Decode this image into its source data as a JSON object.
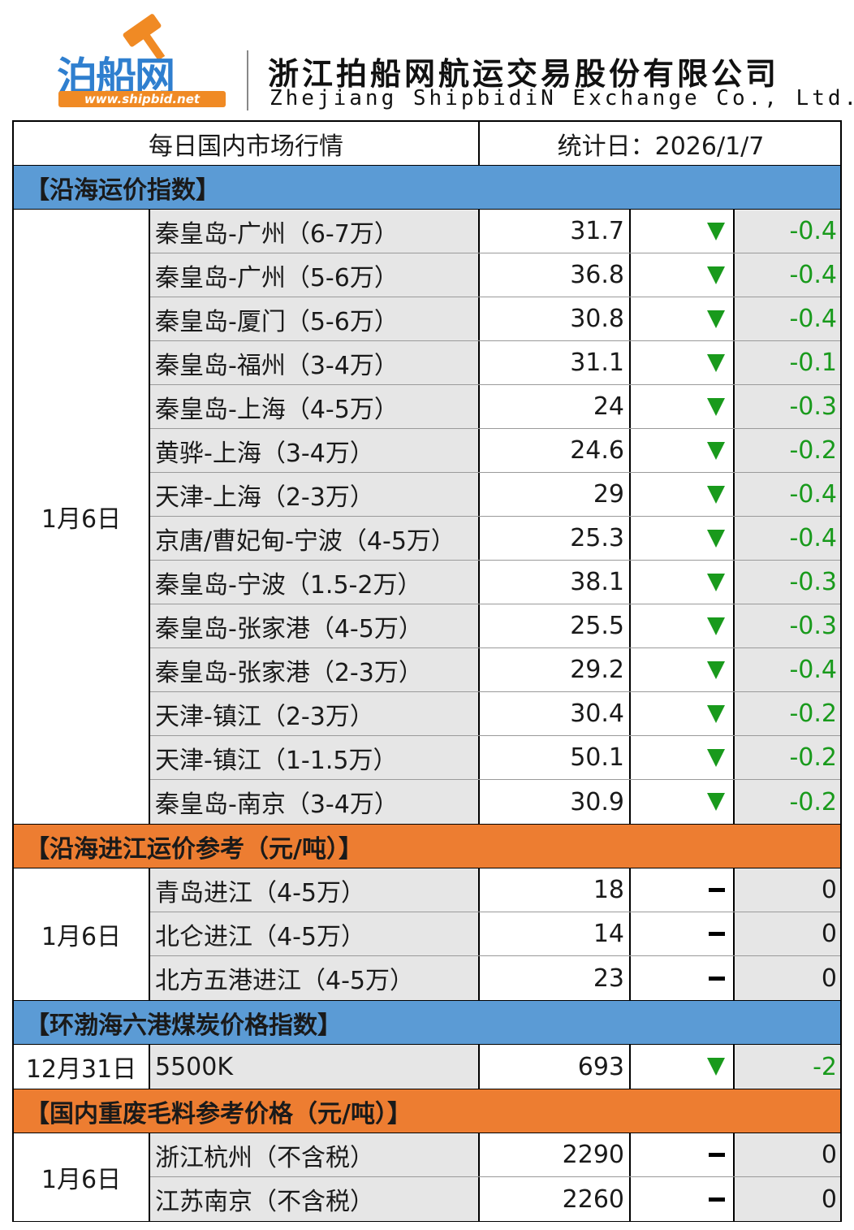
{
  "header": {
    "logo_text": "泊船网",
    "logo_url": "www.shipbid.net",
    "company_cn": "浙江拍船网航运交易股份有限公司",
    "company_en": "Zhejiang ShipbidiN Exchange Co., Ltd."
  },
  "title": {
    "left": "每日国内市场行情",
    "right": "统计日：2026/1/7"
  },
  "sections": [
    {
      "title": "【沿海运价指数】",
      "date": "1月6日",
      "rows": [
        {
          "name": "秦皇岛-广州（6-7万）",
          "value": "31.7",
          "trend": "down",
          "change": "-0.4"
        },
        {
          "name": "秦皇岛-广州（5-6万）",
          "value": "36.8",
          "trend": "down",
          "change": "-0.4"
        },
        {
          "name": "秦皇岛-厦门（5-6万）",
          "value": "30.8",
          "trend": "down",
          "change": "-0.4"
        },
        {
          "name": "秦皇岛-福州（3-4万）",
          "value": "31.1",
          "trend": "down",
          "change": "-0.1"
        },
        {
          "name": "秦皇岛-上海（4-5万）",
          "value": "24",
          "trend": "down",
          "change": "-0.3"
        },
        {
          "name": "黄骅-上海（3-4万）",
          "value": "24.6",
          "trend": "down",
          "change": "-0.2"
        },
        {
          "name": "天津-上海（2-3万）",
          "value": "29",
          "trend": "down",
          "change": "-0.4"
        },
        {
          "name": "京唐/曹妃甸-宁波（4-5万）",
          "value": "25.3",
          "trend": "down",
          "change": "-0.4"
        },
        {
          "name": "秦皇岛-宁波（1.5-2万）",
          "value": "38.1",
          "trend": "down",
          "change": "-0.3"
        },
        {
          "name": "秦皇岛-张家港（4-5万）",
          "value": "25.5",
          "trend": "down",
          "change": "-0.3"
        },
        {
          "name": "秦皇岛-张家港（2-3万）",
          "value": "29.2",
          "trend": "down",
          "change": "-0.4"
        },
        {
          "name": "天津-镇江（2-3万）",
          "value": "30.4",
          "trend": "down",
          "change": "-0.2"
        },
        {
          "name": "天津-镇江（1-1.5万）",
          "value": "50.1",
          "trend": "down",
          "change": "-0.2"
        },
        {
          "name": "秦皇岛-南京（3-4万）",
          "value": "30.9",
          "trend": "down",
          "change": "-0.2"
        }
      ]
    },
    {
      "title": "【沿海进江运价参考（元/吨）】",
      "date": "1月6日",
      "rows": [
        {
          "name": "青岛进江（4-5万）",
          "value": "18",
          "trend": "flat",
          "change": "0"
        },
        {
          "name": "北仑进江（4-5万）",
          "value": "14",
          "trend": "flat",
          "change": "0"
        },
        {
          "name": "北方五港进江（4-5万）",
          "value": "23",
          "trend": "flat",
          "change": "0"
        }
      ]
    },
    {
      "title": "【环渤海六港煤炭价格指数】",
      "date": "12月31日",
      "rows": [
        {
          "name": "5500K",
          "value": "693",
          "trend": "down",
          "change": "-2"
        }
      ]
    },
    {
      "title": "【国内重废毛料参考价格（元/吨）】",
      "date": "1月6日",
      "rows": [
        {
          "name": "浙江杭州（不含税）",
          "value": "2290",
          "trend": "flat",
          "change": "0"
        },
        {
          "name": "江苏南京（不含税）",
          "value": "2260",
          "trend": "flat",
          "change": "0"
        }
      ]
    }
  ],
  "colors": {
    "blue_section": "#5b9bd5",
    "orange_section": "#ed7d31",
    "down_green": "#199a1c",
    "shaded_cell": "#e6e6e6"
  }
}
